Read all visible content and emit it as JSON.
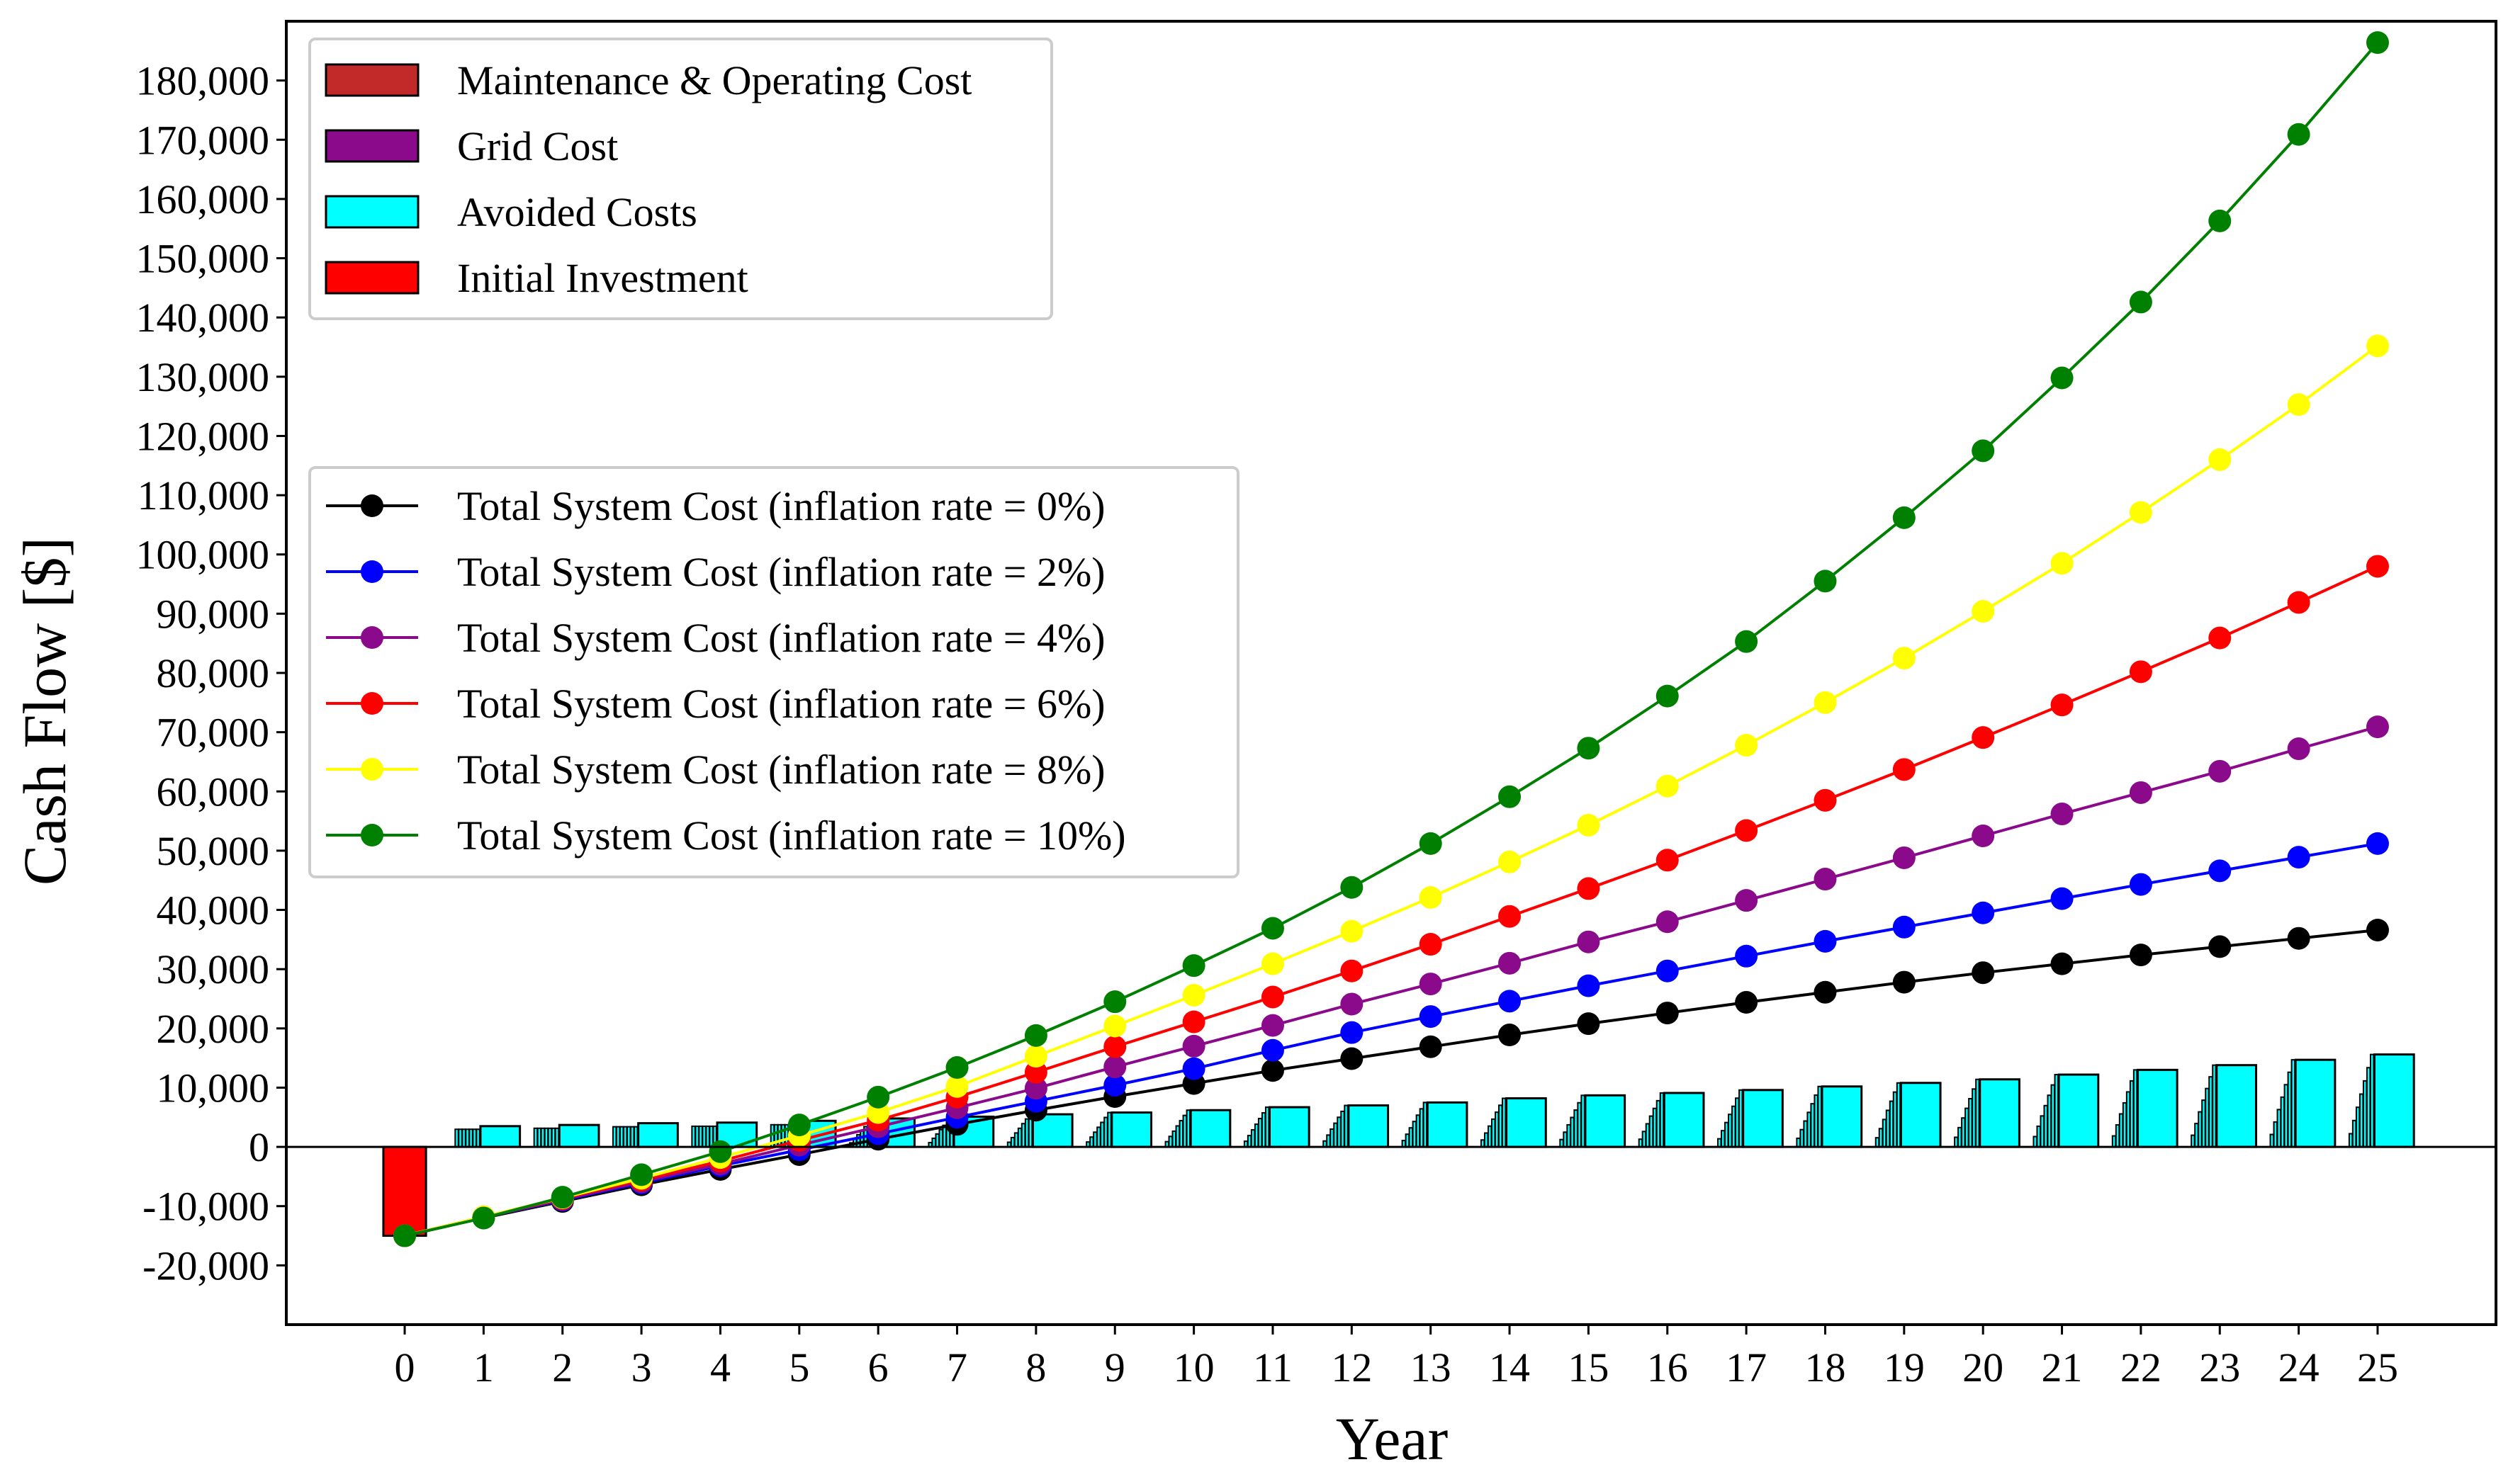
{
  "chart_data": {
    "type": "bar+line",
    "xlabel": "Year",
    "ylabel": "Cash Flow [$]",
    "ylim": [
      -30000,
      190000
    ],
    "xlim": [
      -1.5,
      26.5
    ],
    "yticks": [
      -20000,
      -10000,
      0,
      10000,
      20000,
      30000,
      40000,
      50000,
      60000,
      70000,
      80000,
      90000,
      100000,
      110000,
      120000,
      130000,
      140000,
      150000,
      160000,
      170000,
      180000
    ],
    "ytick_labels": [
      "-20,000",
      "-10,000",
      "0",
      "10,000",
      "20,000",
      "30,000",
      "40,000",
      "50,000",
      "60,000",
      "70,000",
      "80,000",
      "90,000",
      "100,000",
      "110,000",
      "120,000",
      "130,000",
      "140,000",
      "150,000",
      "160,000",
      "170,000",
      "180,000"
    ],
    "xticks": [
      0,
      1,
      2,
      3,
      4,
      5,
      6,
      7,
      8,
      9,
      10,
      11,
      12,
      13,
      14,
      15,
      16,
      17,
      18,
      19,
      20,
      21,
      22,
      23,
      24,
      25
    ],
    "xtick_labels": [
      "0",
      "1",
      "2",
      "3",
      "4",
      "5",
      "6",
      "7",
      "8",
      "9",
      "10",
      "11",
      "12",
      "13",
      "14",
      "15",
      "16",
      "17",
      "18",
      "19",
      "20",
      "21",
      "22",
      "23",
      "24",
      "25"
    ],
    "bar_legend": [
      {
        "label": "Maintenance & Operating Cost",
        "color": "#c22a2a"
      },
      {
        "label": "Grid Cost",
        "color": "#8b0a8b"
      },
      {
        "label": "Avoided Costs",
        "color": "#00ffff"
      },
      {
        "label": "Initial Investment",
        "color": "#ff0000"
      }
    ],
    "initial_investment": {
      "year": 0,
      "value": -15000,
      "color": "#ff0000"
    },
    "avoided_costs": {
      "color": "#00ffff",
      "years": [
        1,
        2,
        3,
        4,
        5,
        6,
        7,
        8,
        9,
        10,
        11,
        12,
        13,
        14,
        15,
        16,
        17,
        18,
        19,
        20,
        21,
        22,
        23,
        24,
        25
      ],
      "values": [
        3500,
        3700,
        4000,
        4100,
        4400,
        4800,
        5100,
        5500,
        5800,
        6200,
        6700,
        7000,
        7500,
        8200,
        8700,
        9100,
        9600,
        10200,
        10800,
        11400,
        12200,
        13000,
        13800,
        14700,
        15600
      ]
    },
    "series": [
      {
        "name": "Total System Cost (inflation rate =  0%)",
        "color": "#000000",
        "x": [
          0,
          1,
          2,
          3,
          4,
          5,
          6,
          7,
          8,
          9,
          10,
          11,
          12,
          13,
          14,
          15,
          16,
          17,
          18,
          19,
          20,
          21,
          22,
          23,
          24,
          25
        ],
        "values": [
          -15000,
          -12000,
          -9200,
          -6400,
          -3800,
          -1300,
          1300,
          3800,
          6200,
          8500,
          10700,
          12900,
          14900,
          16900,
          18900,
          20800,
          22600,
          24400,
          26100,
          27800,
          29400,
          30900,
          32400,
          33800,
          35200,
          36600
        ]
      },
      {
        "name": "Total System Cost (inflation rate =  2%)",
        "color": "#0000ff",
        "x": [
          0,
          1,
          2,
          3,
          4,
          5,
          6,
          7,
          8,
          9,
          10,
          11,
          12,
          13,
          14,
          15,
          16,
          17,
          18,
          19,
          20,
          21,
          22,
          23,
          24,
          25
        ],
        "values": [
          -15000,
          -11900,
          -9000,
          -6100,
          -3200,
          -500,
          2200,
          5000,
          7700,
          10400,
          13200,
          16300,
          19300,
          22000,
          24600,
          27200,
          29700,
          32200,
          34700,
          37100,
          39500,
          41900,
          44300,
          46600,
          48900,
          51200
        ]
      },
      {
        "name": "Total System Cost (inflation rate =  4%)",
        "color": "#8b0a8b",
        "x": [
          0,
          1,
          2,
          3,
          4,
          5,
          6,
          7,
          8,
          9,
          10,
          11,
          12,
          13,
          14,
          15,
          16,
          17,
          18,
          19,
          20,
          21,
          22,
          23,
          24,
          25
        ],
        "values": [
          -15000,
          -11900,
          -8900,
          -5900,
          -2900,
          300,
          3400,
          6600,
          9900,
          13500,
          17000,
          20500,
          24100,
          27500,
          31000,
          34600,
          38000,
          41600,
          45200,
          48800,
          52500,
          56200,
          59800,
          63400,
          67200,
          70900
        ]
      },
      {
        "name": "Total System Cost (inflation rate =  6%)",
        "color": "#ff0000",
        "x": [
          0,
          1,
          2,
          3,
          4,
          5,
          6,
          7,
          8,
          9,
          10,
          11,
          12,
          13,
          14,
          15,
          16,
          17,
          18,
          19,
          20,
          21,
          22,
          23,
          24,
          25
        ],
        "values": [
          -15000,
          -11800,
          -8700,
          -5600,
          -2400,
          1100,
          4500,
          8400,
          12600,
          16900,
          21100,
          25300,
          29700,
          34200,
          38900,
          43600,
          48400,
          53400,
          58500,
          63700,
          69100,
          74600,
          80200,
          85900,
          91900,
          98000
        ]
      },
      {
        "name": "Total System Cost (inflation rate =  8%)",
        "color": "#ffff00",
        "x": [
          0,
          1,
          2,
          3,
          4,
          5,
          6,
          7,
          8,
          9,
          10,
          11,
          12,
          13,
          14,
          15,
          16,
          17,
          18,
          19,
          20,
          21,
          22,
          23,
          24,
          25
        ],
        "values": [
          -15000,
          -11800,
          -8600,
          -5300,
          -1800,
          1900,
          5800,
          10200,
          15300,
          20400,
          25600,
          30900,
          36400,
          42100,
          48100,
          54300,
          60900,
          67800,
          75000,
          82500,
          90400,
          98500,
          107100,
          116000,
          125300,
          135200
        ]
      },
      {
        "name": "Total System Cost (inflation rate =  10%)",
        "color": "#008000",
        "x": [
          0,
          1,
          2,
          3,
          4,
          5,
          6,
          7,
          8,
          9,
          10,
          11,
          12,
          13,
          14,
          15,
          16,
          17,
          18,
          19,
          20,
          21,
          22,
          23,
          24,
          25
        ],
        "values": [
          -15000,
          -12000,
          -8500,
          -4700,
          -800,
          3700,
          8400,
          13400,
          18800,
          24500,
          30600,
          36900,
          43800,
          51200,
          59100,
          67300,
          76100,
          85300,
          95500,
          106200,
          117500,
          129800,
          142600,
          156300,
          170900,
          186400
        ]
      }
    ]
  }
}
